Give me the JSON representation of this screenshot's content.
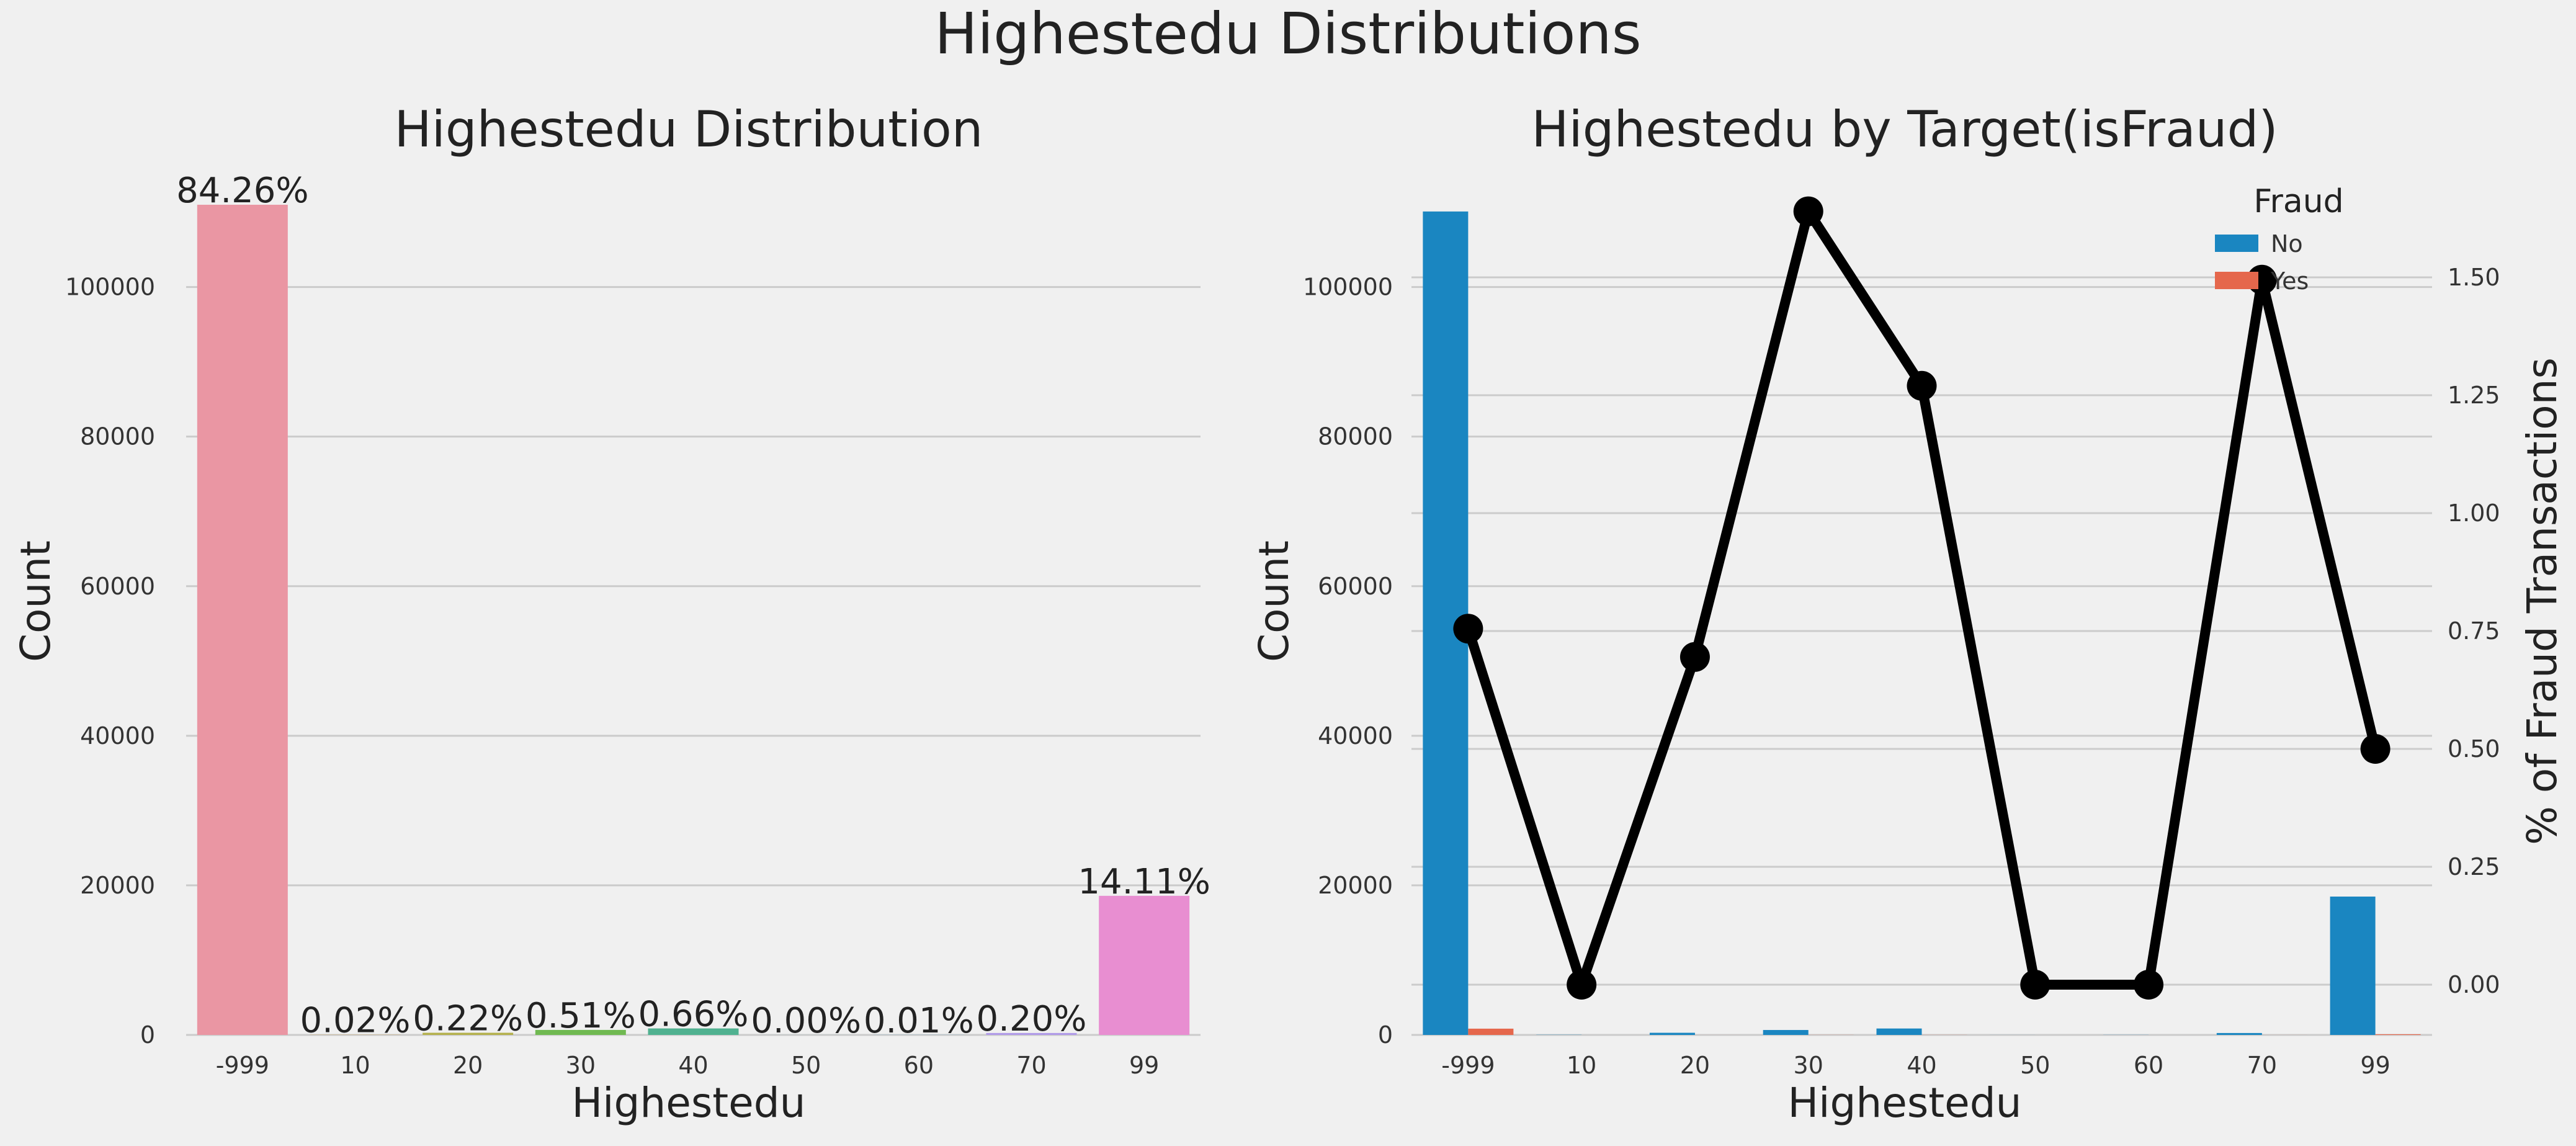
{
  "figure": {
    "title": "Highestedu Distributions",
    "background": "#f0f0f0",
    "grid_color": "#cbcbcb"
  },
  "chart_data": [
    {
      "type": "bar",
      "title": "Highestedu Distribution",
      "xlabel": "Highestedu",
      "ylabel": "Count",
      "categories": [
        "-999",
        "10",
        "20",
        "30",
        "40",
        "50",
        "60",
        "70",
        "99"
      ],
      "values": [
        111000,
        23,
        290,
        670,
        870,
        4,
        13,
        260,
        18600
      ],
      "percent_labels": [
        "84.26%",
        "0.02%",
        "0.22%",
        "0.51%",
        "0.66%",
        "0.00%",
        "0.01%",
        "0.20%",
        "14.11%"
      ],
      "bar_colors": [
        "#ea96a3",
        "#d8a34f",
        "#b4b04c",
        "#70b951",
        "#50b190",
        "#54b4b1",
        "#57acd6",
        "#b09ae8",
        "#e88ed1"
      ],
      "ylim": [
        0,
        111000
      ],
      "yticks": [
        0,
        20000,
        40000,
        60000,
        80000,
        100000
      ],
      "grid": true
    },
    {
      "type": "bar+line",
      "title": "Highestedu by Target(isFraud)",
      "xlabel": "Highestedu",
      "ylabel": "Count",
      "y2label": "% of Fraud Transactions",
      "categories": [
        "-999",
        "10",
        "20",
        "30",
        "40",
        "50",
        "60",
        "70",
        "99"
      ],
      "legend": {
        "title": "Fraud",
        "position": "top-right"
      },
      "series": [
        {
          "name": "No",
          "color": "#1a86c1",
          "values": [
            110100,
            23,
            288,
            660,
            860,
            4,
            13,
            256,
            18500
          ]
        },
        {
          "name": "Yes",
          "color": "#e5674c",
          "values": [
            840,
            0,
            2,
            11,
            11,
            0,
            0,
            4,
            93
          ]
        }
      ],
      "line": {
        "color": "#000000",
        "values": [
          0.755,
          0.0,
          0.695,
          1.64,
          1.27,
          0.0,
          0.0,
          1.495,
          0.5
        ]
      },
      "ylim": [
        0,
        111000
      ],
      "yticks": [
        0,
        20000,
        40000,
        60000,
        80000,
        100000
      ],
      "y2lim": [
        -0.1,
        1.65
      ],
      "y2ticks": [
        0.0,
        0.25,
        0.5,
        0.75,
        1.0,
        1.25,
        1.5
      ],
      "y2ticklabels": [
        "0.00",
        "0.25",
        "0.50",
        "0.75",
        "1.00",
        "1.25",
        "1.50"
      ],
      "grid": true
    }
  ]
}
